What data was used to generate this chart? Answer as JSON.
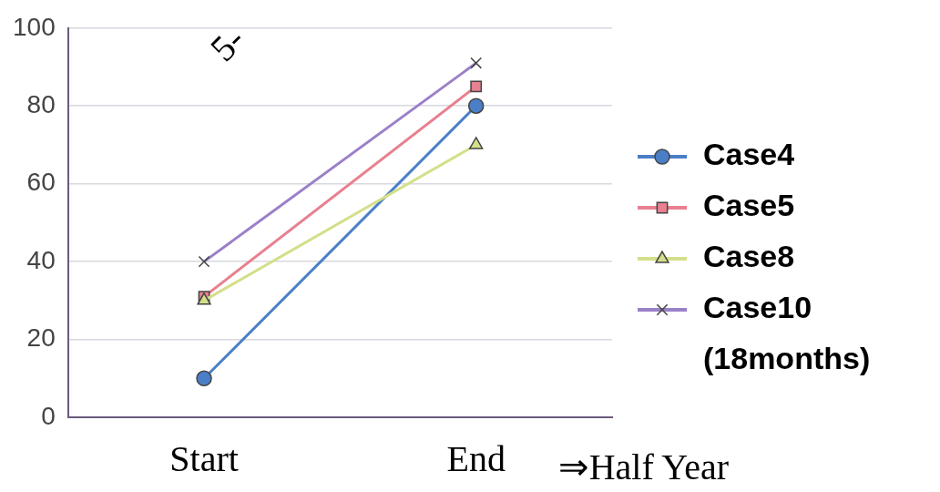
{
  "chart_data": {
    "type": "line",
    "categories": [
      "Start",
      "End"
    ],
    "series": [
      {
        "name": "Case4",
        "color": "#4a7fc8",
        "marker": "circle",
        "values": [
          10,
          80
        ]
      },
      {
        "name": "Case5",
        "color": "#e8808f",
        "marker": "square",
        "values": [
          31,
          85
        ]
      },
      {
        "name": "Case8",
        "color": "#d4df8a",
        "marker": "triangle",
        "values": [
          30,
          70
        ]
      },
      {
        "name": "Case10 (18months)",
        "color": "#9a80c8",
        "marker": "cross",
        "values": [
          40,
          91
        ]
      }
    ],
    "ylim": [
      0,
      100
    ],
    "yticks": [
      0,
      20,
      40,
      60,
      80,
      100
    ],
    "grid": "y",
    "legend": "right",
    "annotations": [
      "5-",
      "⇒Half Year"
    ]
  }
}
